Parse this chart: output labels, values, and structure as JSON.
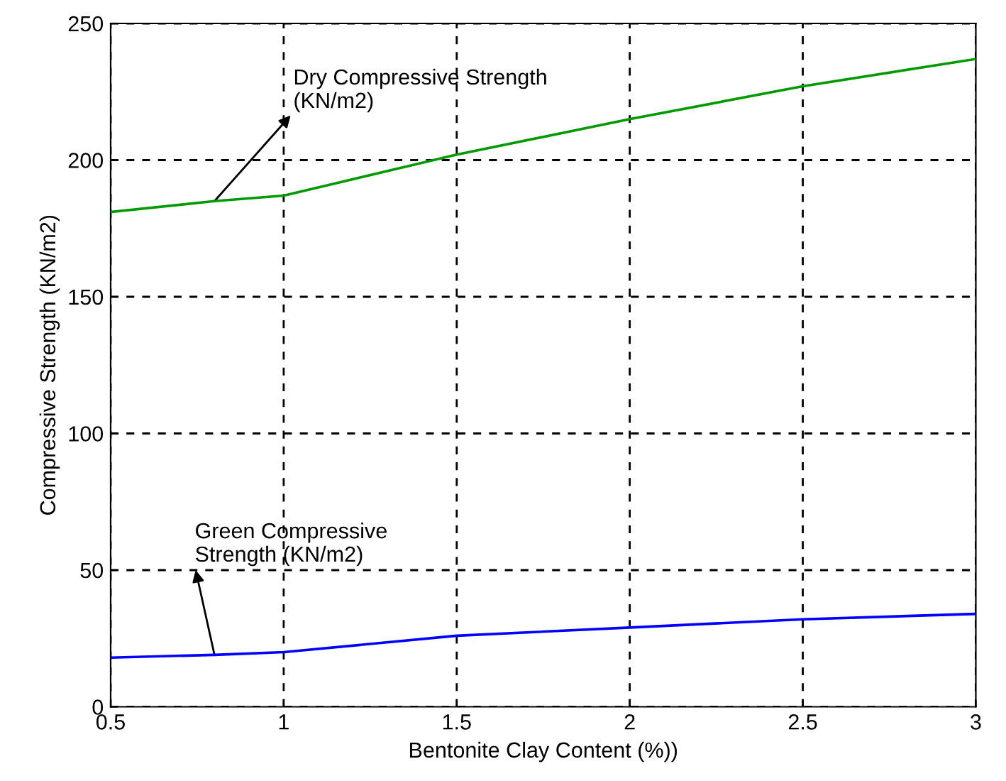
{
  "chart_data": {
    "type": "line",
    "xlabel": "Bentonite Clay Content (%))",
    "ylabel": "Compressive Strength (KN/m2)",
    "x": [
      0.5,
      0.8,
      1.0,
      1.5,
      2.0,
      2.5,
      3.0
    ],
    "series": [
      {
        "color": "#009900",
        "values": [
          181,
          185,
          187,
          202,
          215,
          227,
          237
        ]
      },
      {
        "color": "#0000ff",
        "values": [
          18,
          19,
          20,
          26,
          29,
          32,
          34
        ]
      }
    ],
    "annotations": [
      {
        "text": "Dry Compressive Strength\n(KN/m2)",
        "x": 0.8,
        "y": 185
      },
      {
        "text": "Green Compressive\nStrength (KN/m2)",
        "x": 0.8,
        "y": 19
      }
    ],
    "xlim": [
      0.5,
      3
    ],
    "xticks": [
      0.5,
      1,
      1.5,
      2,
      2.5,
      3
    ],
    "ylim": [
      0,
      250
    ],
    "yticks": [
      0,
      50,
      100,
      150,
      200,
      250
    ],
    "grid": true,
    "line_style": "solid",
    "marker": "none"
  }
}
